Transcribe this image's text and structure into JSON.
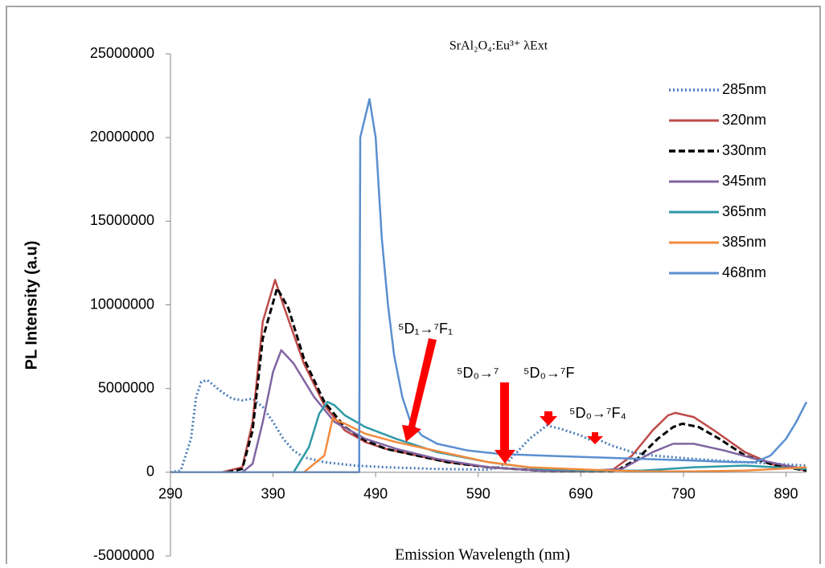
{
  "chart_data": {
    "type": "line",
    "title": "SrAl₂O₄:Eu³⁺ λExt",
    "x_label": "Emission Wavelength (nm)",
    "y_label": "PL Intensity (a.u)",
    "annotations": [
      "⁵D₁→⁷F₁",
      "⁵D₀→⁷",
      "⁵D₀→⁷F",
      "⁵D₀→⁷F₄"
    ],
    "xlim": [
      290,
      910
    ],
    "ylim": [
      -5000000,
      25000000
    ],
    "xticks": [
      290,
      390,
      490,
      590,
      690,
      790,
      890
    ],
    "yticks": [
      -5000000,
      0,
      5000000,
      10000000,
      15000000,
      20000000,
      25000000
    ],
    "grid": false,
    "legend": "right",
    "series": [
      {
        "name": "285nm",
        "color": "#4a7ebb",
        "style": "dotted",
        "x": [
          290,
          300,
          310,
          315,
          320,
          326,
          330,
          340,
          350,
          360,
          370,
          380,
          390,
          400,
          410,
          420,
          440,
          470,
          500,
          550,
          600,
          610,
          620,
          640,
          657,
          670,
          690,
          700,
          702,
          720,
          740,
          760,
          800,
          850,
          880,
          910
        ],
        "values": [
          0,
          100000,
          2000000,
          4500000,
          5400000,
          5500000,
          5300000,
          4800000,
          4400000,
          4300000,
          4400000,
          3900000,
          3000000,
          2000000,
          1300000,
          900000,
          600000,
          400000,
          300000,
          200000,
          150000,
          300000,
          700000,
          2000000,
          2800000,
          2600000,
          2200000,
          1900000,
          2100000,
          1600000,
          1200000,
          1000000,
          800000,
          600000,
          500000,
          400000
        ]
      },
      {
        "name": "320nm",
        "color": "#be4b48",
        "style": "solid",
        "x": [
          340,
          360,
          370,
          380,
          392,
          400,
          420,
          440,
          460,
          480,
          500,
          530,
          560,
          600,
          650,
          700,
          720,
          740,
          760,
          775,
          782,
          800,
          820,
          850,
          880,
          900,
          910
        ],
        "values": [
          0,
          300000,
          3000000,
          9000000,
          11500000,
          10000000,
          6500000,
          4000000,
          2500000,
          1800000,
          1400000,
          1000000,
          600000,
          300000,
          100000,
          50000,
          100000,
          1000000,
          2500000,
          3400000,
          3550000,
          3300000,
          2500000,
          1200000,
          400000,
          200000,
          100000
        ]
      },
      {
        "name": "330nm",
        "color": "#000000",
        "style": "dashed",
        "x": [
          345,
          360,
          370,
          380,
          394,
          405,
          420,
          440,
          460,
          480,
          500,
          530,
          560,
          600,
          650,
          700,
          725,
          745,
          765,
          780,
          789,
          805,
          825,
          850,
          880,
          900,
          910
        ],
        "values": [
          0,
          200000,
          2500000,
          8000000,
          11000000,
          9800000,
          6800000,
          4200000,
          2700000,
          1900000,
          1400000,
          1000000,
          600000,
          300000,
          100000,
          50000,
          100000,
          800000,
          2000000,
          2700000,
          2900000,
          2700000,
          2000000,
          1000000,
          400000,
          200000,
          100000
        ]
      },
      {
        "name": "345nm",
        "color": "#8064a2",
        "style": "solid",
        "x": [
          360,
          370,
          380,
          390,
          398,
          410,
          430,
          450,
          480,
          510,
          550,
          600,
          650,
          700,
          730,
          760,
          780,
          800,
          830,
          860,
          890,
          910
        ],
        "values": [
          0,
          500000,
          3000000,
          6000000,
          7300000,
          6500000,
          4500000,
          3000000,
          2000000,
          1400000,
          800000,
          300000,
          100000,
          100000,
          200000,
          1200000,
          1700000,
          1700000,
          1300000,
          800000,
          400000,
          200000
        ]
      },
      {
        "name": "365nm",
        "color": "#2e9aa7",
        "style": "solid",
        "x": [
          410,
          425,
          435,
          443,
          450,
          460,
          480,
          510,
          550,
          600,
          650,
          700,
          750,
          800,
          850,
          880,
          910
        ],
        "values": [
          0,
          1500000,
          3500000,
          4200000,
          4000000,
          3400000,
          2700000,
          2000000,
          1200000,
          600000,
          200000,
          100000,
          100000,
          300000,
          400000,
          300000,
          200000
        ]
      },
      {
        "name": "385nm",
        "color": "#f38b3c",
        "style": "solid",
        "x": [
          420,
          440,
          448,
          460,
          480,
          510,
          540,
          570,
          600,
          640,
          700,
          750,
          800,
          850,
          880,
          910
        ],
        "values": [
          0,
          1000000,
          3200000,
          2900000,
          2300000,
          1800000,
          1400000,
          1000000,
          600000,
          300000,
          150000,
          50000,
          50000,
          100000,
          200000,
          300000
        ]
      },
      {
        "name": "468nm",
        "color": "#5b8fd0",
        "style": "solid",
        "x": [
          290,
          470,
          474,
          475,
          484,
          490,
          496,
          502,
          508,
          516,
          524,
          535,
          550,
          580,
          610,
          650,
          700,
          750,
          800,
          840,
          860,
          875,
          890,
          900,
          910
        ],
        "values": [
          0,
          0,
          0,
          20000000,
          22300000,
          20000000,
          14000000,
          10000000,
          7000000,
          4500000,
          3000000,
          2200000,
          1700000,
          1300000,
          1100000,
          1000000,
          900000,
          800000,
          700000,
          600000,
          600000,
          1000000,
          2000000,
          3000000,
          4200000
        ]
      }
    ]
  }
}
